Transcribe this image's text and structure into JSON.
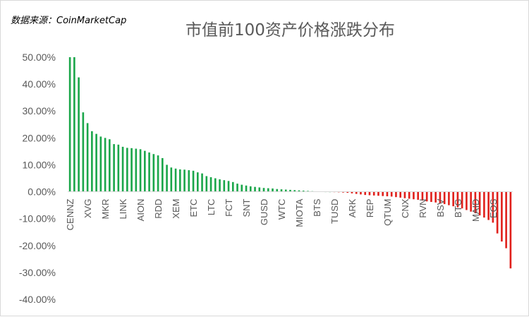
{
  "source_note": "数据来源：CoinMarketCap",
  "chart_data": {
    "type": "bar",
    "title": "市值前100资产价格涨跌分布",
    "xlabel": "",
    "ylabel": "",
    "ylim": [
      -0.4,
      0.5
    ],
    "y_ticks": [
      0.5,
      0.4,
      0.3,
      0.2,
      0.1,
      0.0,
      -0.1,
      -0.2,
      -0.3,
      -0.4
    ],
    "y_tick_labels": [
      "50.00%",
      "40.00%",
      "30.00%",
      "20.00%",
      "10.00%",
      "0.00%",
      "-10.00%",
      "-20.00%",
      "-30.00%",
      "-40.00%"
    ],
    "x_tick_labels": [
      "CENNZ",
      "XVG",
      "MKR",
      "LINK",
      "AION",
      "RDD",
      "XEM",
      "ETC",
      "LTC",
      "FCT",
      "SNT",
      "GUSD",
      "WTC",
      "MIOTA",
      "BTS",
      "TUSD",
      "ARK",
      "REP",
      "QTUM",
      "CNX",
      "RVN",
      "BSV",
      "BTG",
      "MAID",
      "EOS"
    ],
    "x_tick_every": 4,
    "grid": false,
    "legend": "none",
    "colors": {
      "positive": "#1aa64a",
      "negative": "#e0201b",
      "axis": "#d9d9d9",
      "tick": "#595959"
    },
    "values": [
      0.5,
      0.5,
      0.425,
      0.295,
      0.255,
      0.225,
      0.215,
      0.205,
      0.2,
      0.195,
      0.177,
      0.175,
      0.167,
      0.163,
      0.162,
      0.16,
      0.158,
      0.152,
      0.146,
      0.14,
      0.135,
      0.125,
      0.1,
      0.09,
      0.086,
      0.083,
      0.082,
      0.08,
      0.078,
      0.072,
      0.068,
      0.058,
      0.054,
      0.05,
      0.046,
      0.043,
      0.04,
      0.036,
      0.03,
      0.026,
      0.023,
      0.02,
      0.018,
      0.016,
      0.014,
      0.013,
      0.012,
      0.01,
      0.009,
      0.008,
      0.007,
      0.006,
      0.005,
      0.004,
      0.003,
      0.002,
      0.001,
      0.0005,
      0.0002,
      0.0,
      -0.001,
      -0.002,
      -0.003,
      -0.004,
      -0.006,
      -0.008,
      -0.01,
      -0.012,
      -0.013,
      -0.014,
      -0.015,
      -0.016,
      -0.017,
      -0.018,
      -0.02,
      -0.022,
      -0.024,
      -0.026,
      -0.028,
      -0.03,
      -0.033,
      -0.036,
      -0.038,
      -0.04,
      -0.043,
      -0.046,
      -0.05,
      -0.054,
      -0.058,
      -0.062,
      -0.068,
      -0.074,
      -0.08,
      -0.088,
      -0.096,
      -0.105,
      -0.115,
      -0.155,
      -0.185,
      -0.21,
      -0.285
    ]
  }
}
